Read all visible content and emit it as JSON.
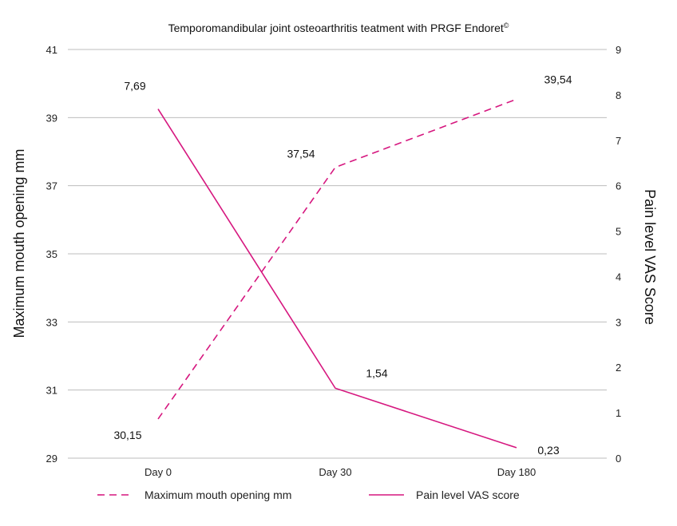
{
  "chart_data": {
    "type": "line",
    "title": "Temporomandibular joint osteoarthritis teatment with PRGF Endoret",
    "title_mark": "©",
    "categories": [
      "Day 0",
      "Day 30",
      "Day 180"
    ],
    "y_left": {
      "label": "Maximum mouth opening mm",
      "range": [
        29,
        41
      ],
      "ticks": [
        "29",
        "31",
        "33",
        "35",
        "37",
        "39",
        "41"
      ]
    },
    "y_right": {
      "label": "Pain level VAS Score",
      "range": [
        0,
        9
      ],
      "ticks": [
        "0",
        "1",
        "2",
        "3",
        "4",
        "5",
        "6",
        "7",
        "8",
        "9"
      ]
    },
    "grid": true,
    "legend_position": "bottom",
    "series": [
      {
        "name": "Maximum mouth opening mm",
        "axis": "left",
        "style": "dashed",
        "color": "#d6177f",
        "values": [
          30.15,
          37.54,
          39.54
        ],
        "labels": [
          "30,15",
          "37,54",
          "39,54"
        ]
      },
      {
        "name": "Pain level VAS score",
        "axis": "right",
        "style": "solid",
        "color": "#d6177f",
        "values": [
          7.69,
          1.54,
          0.23
        ],
        "labels": [
          "7,69",
          "1,54",
          "0,23"
        ]
      }
    ]
  }
}
